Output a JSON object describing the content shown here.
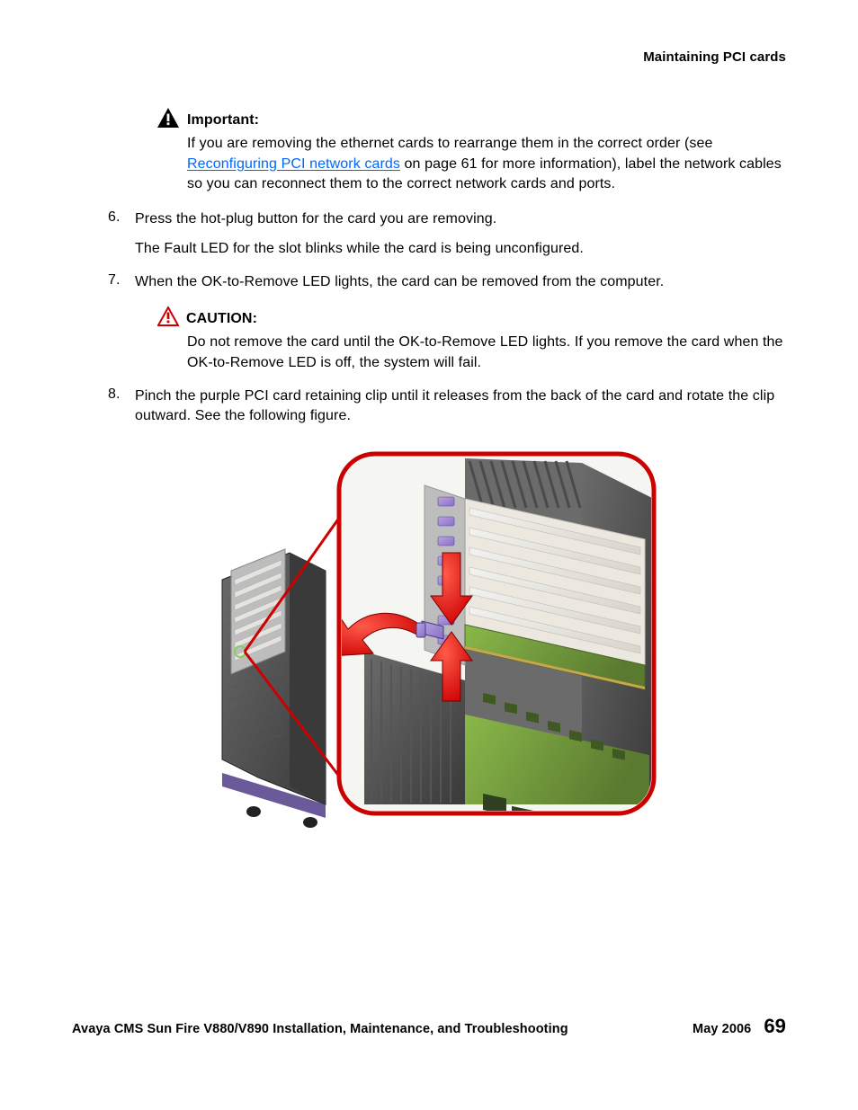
{
  "running_head": "Maintaining PCI cards",
  "important": {
    "label": "Important:",
    "body_pre": "If you are removing the ethernet cards to rearrange them in the correct order (see ",
    "link_text": "Reconfiguring PCI network cards",
    "body_post": " on page 61 for more information), label the network cables so you can reconnect them to the correct network cards and ports.",
    "icon_color": "#000000"
  },
  "step6": {
    "num": "6.",
    "text": "Press the hot-plug button for the card you are removing.",
    "sub": "The Fault LED for the slot blinks while the card is being unconfigured."
  },
  "step7": {
    "num": "7.",
    "text": "When the OK-to-Remove LED lights, the card can be removed from the computer."
  },
  "caution": {
    "label": "CAUTION:",
    "body": "Do not remove the card until the OK-to-Remove LED lights. If you remove the card when the OK-to-Remove LED is off, the system will fail.",
    "icon_stroke": "#cc0000"
  },
  "step8": {
    "num": "8.",
    "text": "Pinch the purple PCI card retaining clip until it releases from the back of the card and rotate the clip outward. See the following figure."
  },
  "figure": {
    "callout_border": "#cc0000",
    "arrow_fill": "#cc0000",
    "chassis_dark": "#3a3a3a",
    "chassis_mid": "#6b6b6b",
    "chassis_light": "#bdbdbd",
    "pcb_green": "#8ab84a",
    "pcb_dark": "#5a7a2f",
    "clip_purple": "#8a6fc8",
    "clip_highlight": "#b8a5e0",
    "base_purple": "#6a5a9a",
    "wheel": "#222222",
    "metal_rail": "#d8d4cc",
    "callout_origin_ring": "#88cc66"
  },
  "footer": {
    "title": "Avaya CMS Sun Fire V880/V890 Installation, Maintenance, and Troubleshooting",
    "date": "May 2006",
    "page": "69"
  }
}
